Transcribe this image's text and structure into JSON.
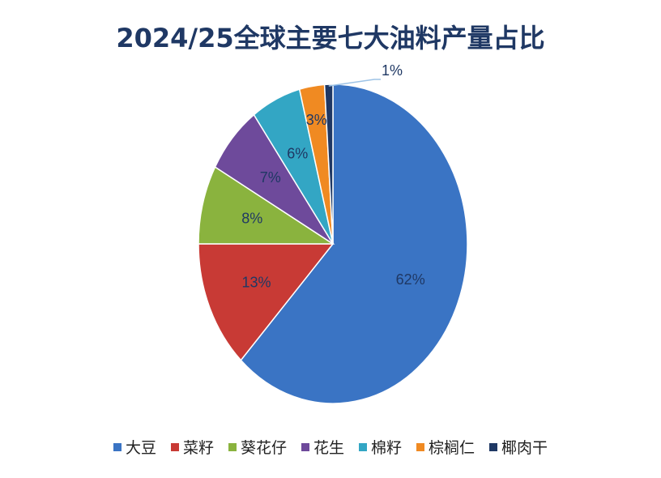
{
  "chart_data": {
    "type": "pie",
    "title": "2024/25全球主要七大油料产量占比",
    "categories": [
      "大豆",
      "菜籽",
      "葵花仔",
      "花生",
      "棉籽",
      "棕榈仁",
      "椰肉干"
    ],
    "values": [
      62,
      13,
      8,
      7,
      6,
      3,
      1
    ],
    "labels": [
      "62%",
      "13%",
      "8%",
      "7%",
      "6%",
      "3%",
      "1%"
    ],
    "colors": [
      "#3a74c4",
      "#c83a35",
      "#8ab33e",
      "#6e4a9b",
      "#33a6c4",
      "#f08a22",
      "#1f3864"
    ],
    "legend_position": "bottom"
  }
}
